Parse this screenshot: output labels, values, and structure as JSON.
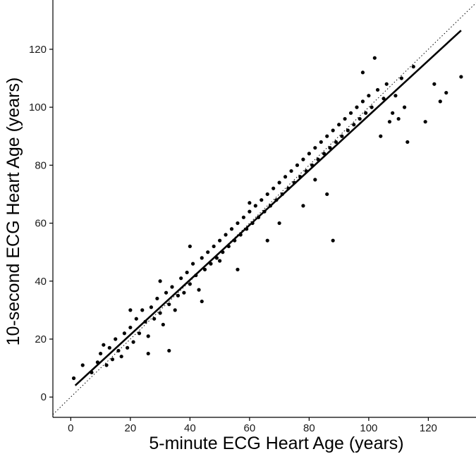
{
  "chart_data": {
    "type": "scatter",
    "title": "",
    "xlabel": "5-minute ECG Heart Age (years)",
    "ylabel": "10-second ECG Heart Age (years)",
    "xlim": [
      -6,
      136
    ],
    "ylim": [
      -7,
      137
    ],
    "x_ticks": [
      0,
      20,
      40,
      60,
      80,
      100,
      120
    ],
    "y_ticks": [
      0,
      20,
      40,
      60,
      80,
      100,
      120
    ],
    "grid": false,
    "legend": "none",
    "reference_line": {
      "style": "dotted",
      "x": [
        -6,
        136
      ],
      "y": [
        -6,
        136
      ]
    },
    "fit_line": {
      "style": "solid",
      "x": [
        1.5,
        131
      ],
      "y": [
        4,
        126.5
      ]
    },
    "series": [
      {
        "points": [
          [
            1,
            6.5
          ],
          [
            4,
            11
          ],
          [
            7,
            8.5
          ],
          [
            9,
            12
          ],
          [
            10,
            15
          ],
          [
            11,
            18
          ],
          [
            12,
            11
          ],
          [
            13,
            17
          ],
          [
            14,
            13
          ],
          [
            15,
            20
          ],
          [
            16,
            16
          ],
          [
            17,
            14
          ],
          [
            18,
            22
          ],
          [
            19,
            17
          ],
          [
            20,
            24
          ],
          [
            21,
            19
          ],
          [
            22,
            27
          ],
          [
            23,
            22
          ],
          [
            24,
            30
          ],
          [
            25,
            26
          ],
          [
            26,
            21
          ],
          [
            27,
            31
          ],
          [
            28,
            27
          ],
          [
            29,
            34
          ],
          [
            30,
            29
          ],
          [
            31,
            25
          ],
          [
            32,
            36
          ],
          [
            33,
            32
          ],
          [
            34,
            38
          ],
          [
            35,
            30
          ],
          [
            36,
            35
          ],
          [
            37,
            41
          ],
          [
            38,
            36
          ],
          [
            39,
            43
          ],
          [
            40,
            39
          ],
          [
            41,
            46
          ],
          [
            42,
            42
          ],
          [
            43,
            37
          ],
          [
            44,
            48
          ],
          [
            45,
            44
          ],
          [
            46,
            50
          ],
          [
            47,
            46
          ],
          [
            48,
            52
          ],
          [
            49,
            48
          ],
          [
            50,
            54
          ],
          [
            51,
            50
          ],
          [
            52,
            56
          ],
          [
            53,
            52
          ],
          [
            54,
            58
          ],
          [
            55,
            54
          ],
          [
            56,
            60
          ],
          [
            57,
            56
          ],
          [
            58,
            62
          ],
          [
            59,
            58
          ],
          [
            60,
            64
          ],
          [
            61,
            60
          ],
          [
            62,
            66
          ],
          [
            63,
            62
          ],
          [
            64,
            68
          ],
          [
            65,
            64
          ],
          [
            66,
            70
          ],
          [
            67,
            66
          ],
          [
            68,
            72
          ],
          [
            69,
            68
          ],
          [
            70,
            74
          ],
          [
            71,
            70
          ],
          [
            72,
            76
          ],
          [
            73,
            72
          ],
          [
            74,
            78
          ],
          [
            75,
            74
          ],
          [
            76,
            80
          ],
          [
            77,
            76
          ],
          [
            78,
            82
          ],
          [
            79,
            78
          ],
          [
            80,
            84
          ],
          [
            81,
            80
          ],
          [
            82,
            86
          ],
          [
            83,
            82
          ],
          [
            84,
            88
          ],
          [
            85,
            84
          ],
          [
            86,
            90
          ],
          [
            87,
            86
          ],
          [
            88,
            92
          ],
          [
            89,
            88
          ],
          [
            90,
            94
          ],
          [
            91,
            90
          ],
          [
            92,
            96
          ],
          [
            93,
            92
          ],
          [
            94,
            98
          ],
          [
            95,
            94
          ],
          [
            96,
            100
          ],
          [
            97,
            96
          ],
          [
            98,
            102
          ],
          [
            99,
            98
          ],
          [
            100,
            104
          ],
          [
            101,
            100
          ],
          [
            102,
            117
          ],
          [
            103,
            106
          ],
          [
            104,
            90
          ],
          [
            105,
            103
          ],
          [
            106,
            108
          ],
          [
            107,
            95
          ],
          [
            108,
            98
          ],
          [
            109,
            104
          ],
          [
            110,
            96
          ],
          [
            111,
            110
          ],
          [
            112,
            100
          ],
          [
            113,
            88
          ],
          [
            115,
            114
          ],
          [
            119,
            95
          ],
          [
            122,
            108
          ],
          [
            124,
            102
          ],
          [
            126,
            105
          ],
          [
            131,
            110.5
          ],
          [
            98,
            112
          ],
          [
            88,
            54
          ],
          [
            82,
            75
          ],
          [
            70,
            60
          ],
          [
            60,
            67
          ],
          [
            50,
            47
          ],
          [
            40,
            52
          ],
          [
            30,
            40
          ],
          [
            20,
            30
          ],
          [
            26,
            15
          ],
          [
            33,
            16
          ],
          [
            44,
            33
          ],
          [
            56,
            44
          ],
          [
            66,
            54
          ],
          [
            78,
            66
          ],
          [
            86,
            70
          ]
        ]
      }
    ]
  }
}
